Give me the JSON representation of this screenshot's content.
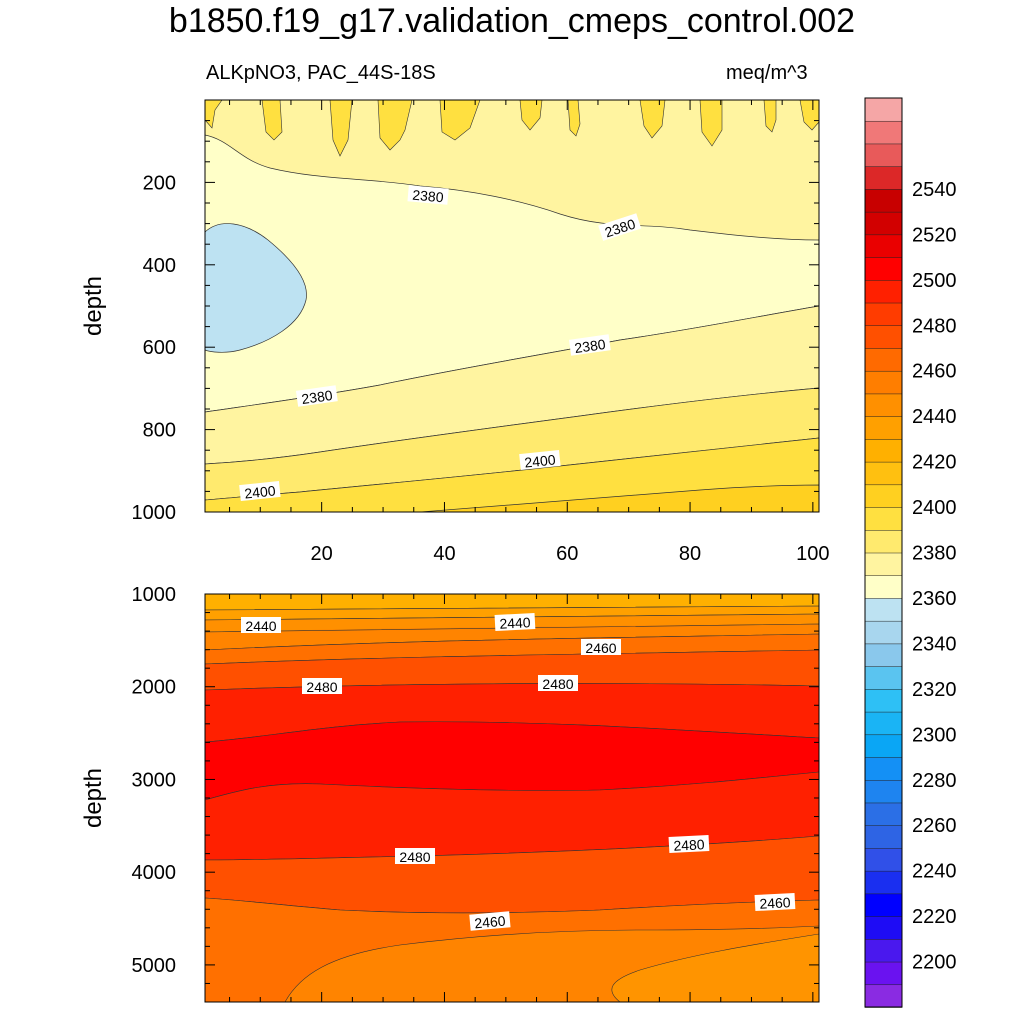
{
  "title": "b1850.f19_g17.validation_cmeps_control.002",
  "subtitle_left": "ALKpNO3, PAC_44S-18S",
  "subtitle_right": "meq/m^3",
  "chart_data": {
    "type": "contour",
    "units": "meq/m^3",
    "colorbar": {
      "levels": [
        2200,
        2210,
        2220,
        2230,
        2240,
        2250,
        2260,
        2270,
        2280,
        2290,
        2300,
        2310,
        2320,
        2330,
        2340,
        2350,
        2360,
        2370,
        2380,
        2390,
        2400,
        2410,
        2420,
        2430,
        2440,
        2450,
        2460,
        2470,
        2480,
        2490,
        2500,
        2510,
        2520,
        2530,
        2540,
        2550
      ],
      "tick_labels": [
        "2200",
        "2220",
        "2240",
        "2260",
        "2280",
        "2300",
        "2320",
        "2340",
        "2360",
        "2380",
        "2400",
        "2420",
        "2440",
        "2460",
        "2480",
        "2500",
        "2520",
        "2540"
      ],
      "colors_bottom_to_top": [
        "#8a2be2",
        "#6a12f0",
        "#4a18ee",
        "#1e0cf5",
        "#0000ff",
        "#1a2ff0",
        "#3050e8",
        "#2e64e4",
        "#2b6fe6",
        "#1e84f0",
        "#1490f5",
        "#0aa6f5",
        "#1ab4f5",
        "#2ec0f5",
        "#5ac4f0",
        "#8ac8ec",
        "#a8d6ee",
        "#bde2f2",
        "#ffffc8",
        "#fff4a0",
        "#ffea6e",
        "#ffe040",
        "#ffd020",
        "#ffc010",
        "#ffb000",
        "#ffa000",
        "#ff9000",
        "#ff7e00",
        "#ff6a00",
        "#ff5000",
        "#ff3c00",
        "#ff2000",
        "#ff0000",
        "#ea0000",
        "#d20000",
        "#c80000",
        "#dc2828",
        "#e85a5a",
        "#f07878",
        "#f5a6a6"
      ]
    },
    "panels": [
      {
        "name": "upper",
        "ylabel": "depth",
        "ylim": [
          0,
          1000
        ],
        "yticks": [
          "200",
          "400",
          "600",
          "800",
          "1000"
        ],
        "xticks": [
          "20",
          "40",
          "60",
          "80",
          "100"
        ],
        "xlim": [
          1,
          101
        ],
        "contour_labels": [
          "2380",
          "2380",
          "2380",
          "2380",
          "2400",
          "2400"
        ]
      },
      {
        "name": "lower",
        "ylabel": "depth",
        "ylim": [
          1000,
          5400
        ],
        "yticks": [
          "1000",
          "2000",
          "3000",
          "4000",
          "5000"
        ],
        "xlim": [
          1,
          101
        ],
        "contour_labels": [
          "2440",
          "2440",
          "2460",
          "2480",
          "2480",
          "2480",
          "2480",
          "2460",
          "2460"
        ]
      }
    ]
  }
}
